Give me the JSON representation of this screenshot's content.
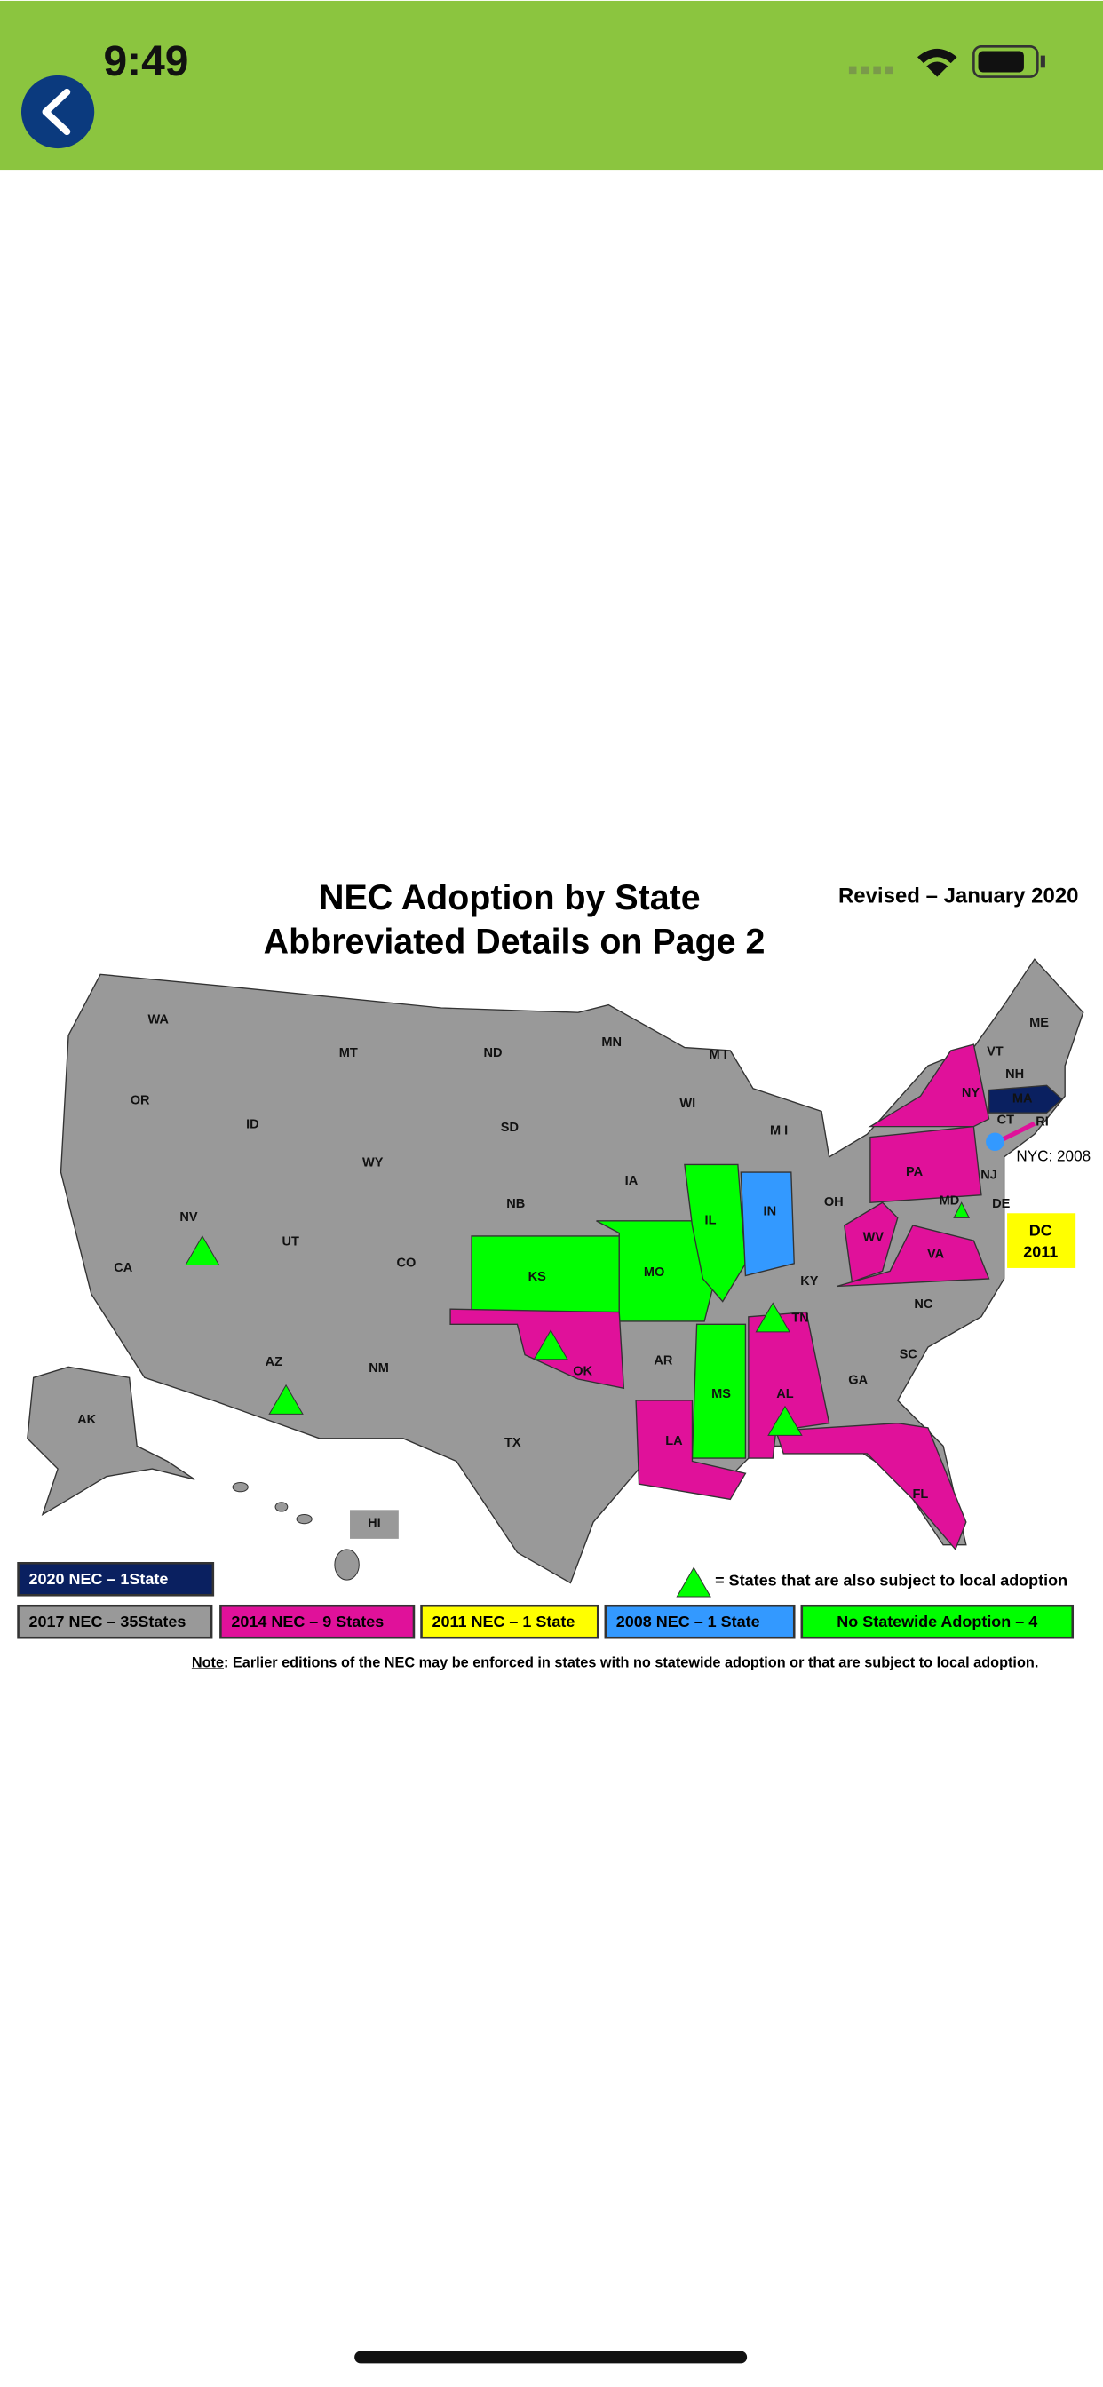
{
  "status_bar": {
    "time": "9:49"
  },
  "map": {
    "title_line1": "NEC Adoption by State",
    "title_line2": "Abbreviated Details on Page 2",
    "revised": "Revised – January 2020",
    "states": [
      "WA",
      "OR",
      "CA",
      "NV",
      "ID",
      "MT",
      "WY",
      "UT",
      "AZ",
      "CO",
      "NM",
      "ND",
      "SD",
      "NB",
      "KS",
      "OK",
      "TX",
      "MN",
      "IA",
      "MO",
      "AR",
      "LA",
      "WI",
      "IL",
      "M I",
      "M I",
      "IN",
      "OH",
      "KY",
      "TN",
      "MS",
      "AL",
      "GA",
      "FL",
      "SC",
      "NC",
      "VA",
      "WV",
      "PA",
      "NY",
      "MD",
      "DE",
      "NJ",
      "CT",
      "RI",
      "MA",
      "VT",
      "NH",
      "ME",
      "AK",
      "HI"
    ],
    "nyc": "NYC: 2008",
    "dc_line1": "DC",
    "dc_line2": "2011",
    "legend": {
      "items": [
        "2020 NEC – 1State",
        "2017 NEC – 35States",
        "2014 NEC – 9 States",
        "2011 NEC – 1 State",
        "2008 NEC – 1 State",
        "No Statewide Adoption – 4"
      ],
      "triangle_note": "= States that are also subject to local adoption"
    },
    "note": {
      "label": "Note",
      "text": ": Earlier editions of the NEC may be enforced in states with no statewide adoption or that are subject to local adoption."
    }
  }
}
